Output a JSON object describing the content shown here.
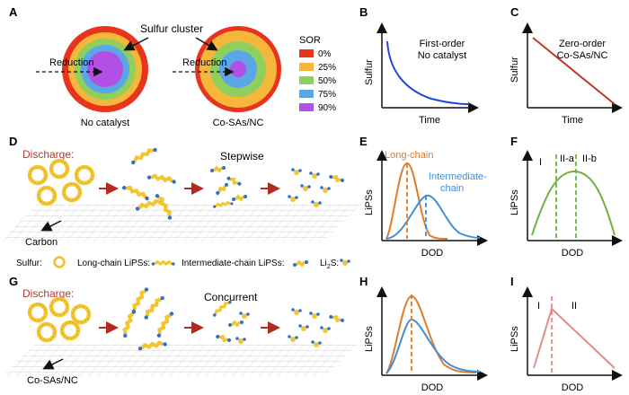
{
  "panel_labels": {
    "a": "A",
    "b": "B",
    "c": "C",
    "d": "D",
    "e": "E",
    "f": "F",
    "g": "G",
    "h": "H",
    "i": "I"
  },
  "panel_a": {
    "sulfur_cluster": "Sulfur cluster",
    "reduction_left": "Reduction",
    "reduction_right": "Reduction",
    "caption_left": "No catalyst",
    "caption_right": "Co-SAs/NC",
    "legend_title": "SOR",
    "legend": [
      {
        "label": "0%",
        "color": "#e8341c"
      },
      {
        "label": "25%",
        "color": "#f5b73b"
      },
      {
        "label": "50%",
        "color": "#8fcf5e"
      },
      {
        "label": "75%",
        "color": "#5aa6e6"
      },
      {
        "label": "90%",
        "color": "#b24fe6"
      }
    ]
  },
  "panel_b": {
    "ylabel": "Sulfur",
    "xlabel": "Time",
    "text1": "First-order",
    "text2": "No catalyst",
    "curve_color": "#2244dd"
  },
  "panel_c": {
    "ylabel": "Sulfur",
    "xlabel": "Time",
    "text1": "Zero-order",
    "text2": "Co-SAs/NC",
    "line_color": "#c0392b"
  },
  "panel_d": {
    "title": "Discharge:",
    "mode": "Stepwise",
    "substrate": "Carbon"
  },
  "legend_row": {
    "sulfur": "Sulfur:",
    "long": "Long-chain LiPSs:",
    "inter": "Intermediate-chain LiPSs:",
    "li2s_prefix": "Li",
    "li2s_sub": "2",
    "li2s_suffix": "S:"
  },
  "panel_e": {
    "ylabel": "LiPSs",
    "xlabel": "DOD",
    "long": "Long-chain",
    "inter1": "Intermediate-",
    "inter2": "chain",
    "long_color": "#e07b2a",
    "inter_color": "#3f8fd8"
  },
  "panel_f": {
    "ylabel": "LiPSs",
    "xlabel": "DOD",
    "r1": "I",
    "r2": "II-a",
    "r3": "II-b",
    "curve_color": "#6db33f"
  },
  "panel_g": {
    "title": "Discharge:",
    "mode": "Concurrent",
    "substrate": "Co-SAs/NC"
  },
  "panel_h": {
    "ylabel": "LiPSs",
    "xlabel": "DOD"
  },
  "panel_i": {
    "ylabel": "LiPSs",
    "xlabel": "DOD",
    "r1": "I",
    "r2": "II",
    "line_color": "#e58a8a"
  },
  "colors": {
    "red_text": "#b23a2e",
    "arrow": "#b52a1e",
    "chain": "#f2c531",
    "blue_end": "#2f6fcf"
  }
}
